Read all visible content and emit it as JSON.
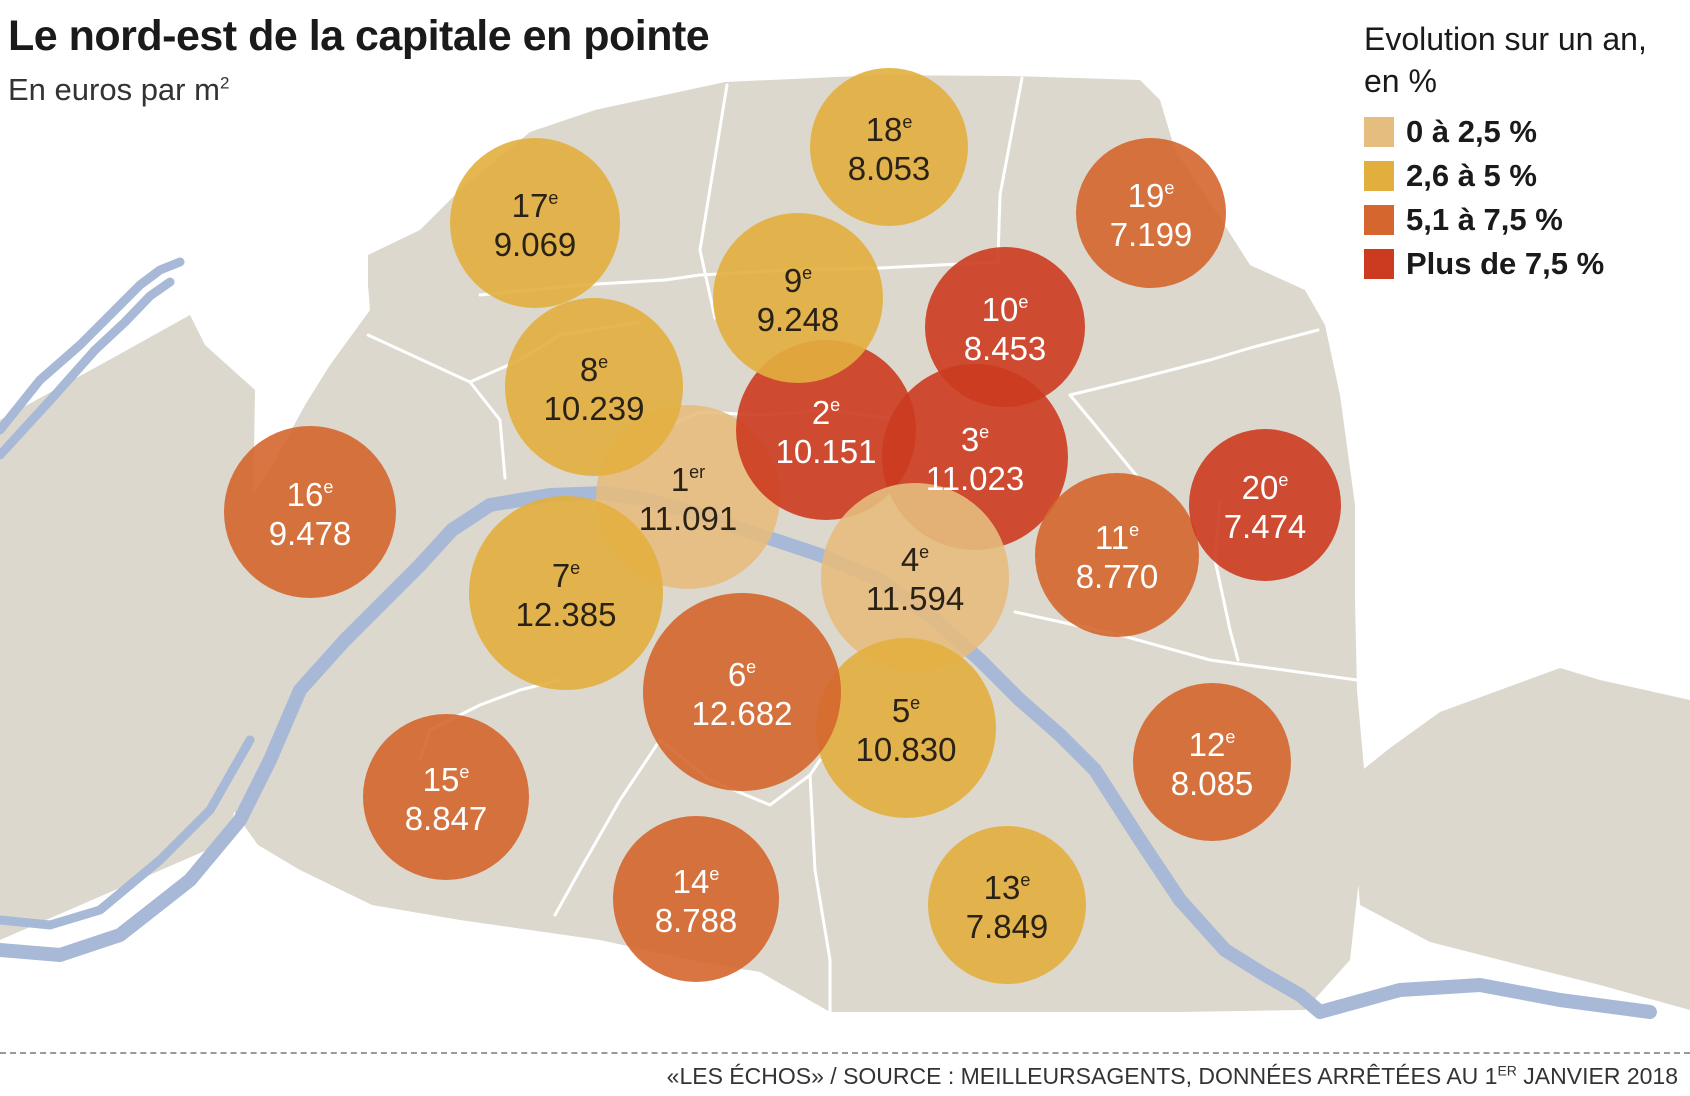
{
  "title": "Le nord-est de la capitale en pointe",
  "subtitle": "En euros par m",
  "subtitle_superscript": "2",
  "legend": {
    "title": "Evolution sur un an, en %",
    "items": [
      {
        "label": "0 à 2,5 %",
        "color": "#E5BD7E"
      },
      {
        "label": "2,6 à 5 %",
        "color": "#E2AF3E"
      },
      {
        "label": "5,1 à 7,5 %",
        "color": "#D4662E"
      },
      {
        "label": "Plus de 7,5 %",
        "color": "#CC3B20"
      }
    ]
  },
  "colors": {
    "land": "#DCD8CE",
    "river": "#A7B9D6",
    "border": "#FFFFFF",
    "label_dark": "#2A2217",
    "label_light": "#FFFFFF"
  },
  "arrondissements": [
    {
      "num": "1",
      "suffix": "er",
      "price": "11.091",
      "growth_class": 0
    },
    {
      "num": "2",
      "suffix": "e",
      "price": "10.151",
      "growth_class": 3
    },
    {
      "num": "3",
      "suffix": "e",
      "price": "11.023",
      "growth_class": 3
    },
    {
      "num": "4",
      "suffix": "e",
      "price": "11.594",
      "growth_class": 0
    },
    {
      "num": "5",
      "suffix": "e",
      "price": "10.830",
      "growth_class": 1
    },
    {
      "num": "6",
      "suffix": "e",
      "price": "12.682",
      "growth_class": 2
    },
    {
      "num": "7",
      "suffix": "e",
      "price": "12.385",
      "growth_class": 1
    },
    {
      "num": "8",
      "suffix": "e",
      "price": "10.239",
      "growth_class": 1
    },
    {
      "num": "9",
      "suffix": "e",
      "price": "9.248",
      "growth_class": 1
    },
    {
      "num": "10",
      "suffix": "e",
      "price": "8.453",
      "growth_class": 3
    },
    {
      "num": "11",
      "suffix": "e",
      "price": "8.770",
      "growth_class": 2
    },
    {
      "num": "12",
      "suffix": "e",
      "price": "8.085",
      "growth_class": 2
    },
    {
      "num": "13",
      "suffix": "e",
      "price": "7.849",
      "growth_class": 1
    },
    {
      "num": "14",
      "suffix": "e",
      "price": "8.788",
      "growth_class": 2
    },
    {
      "num": "15",
      "suffix": "e",
      "price": "8.847",
      "growth_class": 2
    },
    {
      "num": "16",
      "suffix": "e",
      "price": "9.478",
      "growth_class": 2
    },
    {
      "num": "17",
      "suffix": "e",
      "price": "9.069",
      "growth_class": 1
    },
    {
      "num": "18",
      "suffix": "e",
      "price": "8.053",
      "growth_class": 1
    },
    {
      "num": "19",
      "suffix": "e",
      "price": "7.199",
      "growth_class": 2
    },
    {
      "num": "20",
      "suffix": "e",
      "price": "7.474",
      "growth_class": 3
    }
  ],
  "footer": {
    "text": "«LES ÉCHOS» / SOURCE : MEILLEURSAGENTS, DONNÉES ARRÊTÉES AU 1",
    "superscript": "ER",
    "text_after": " JANVIER 2018"
  }
}
